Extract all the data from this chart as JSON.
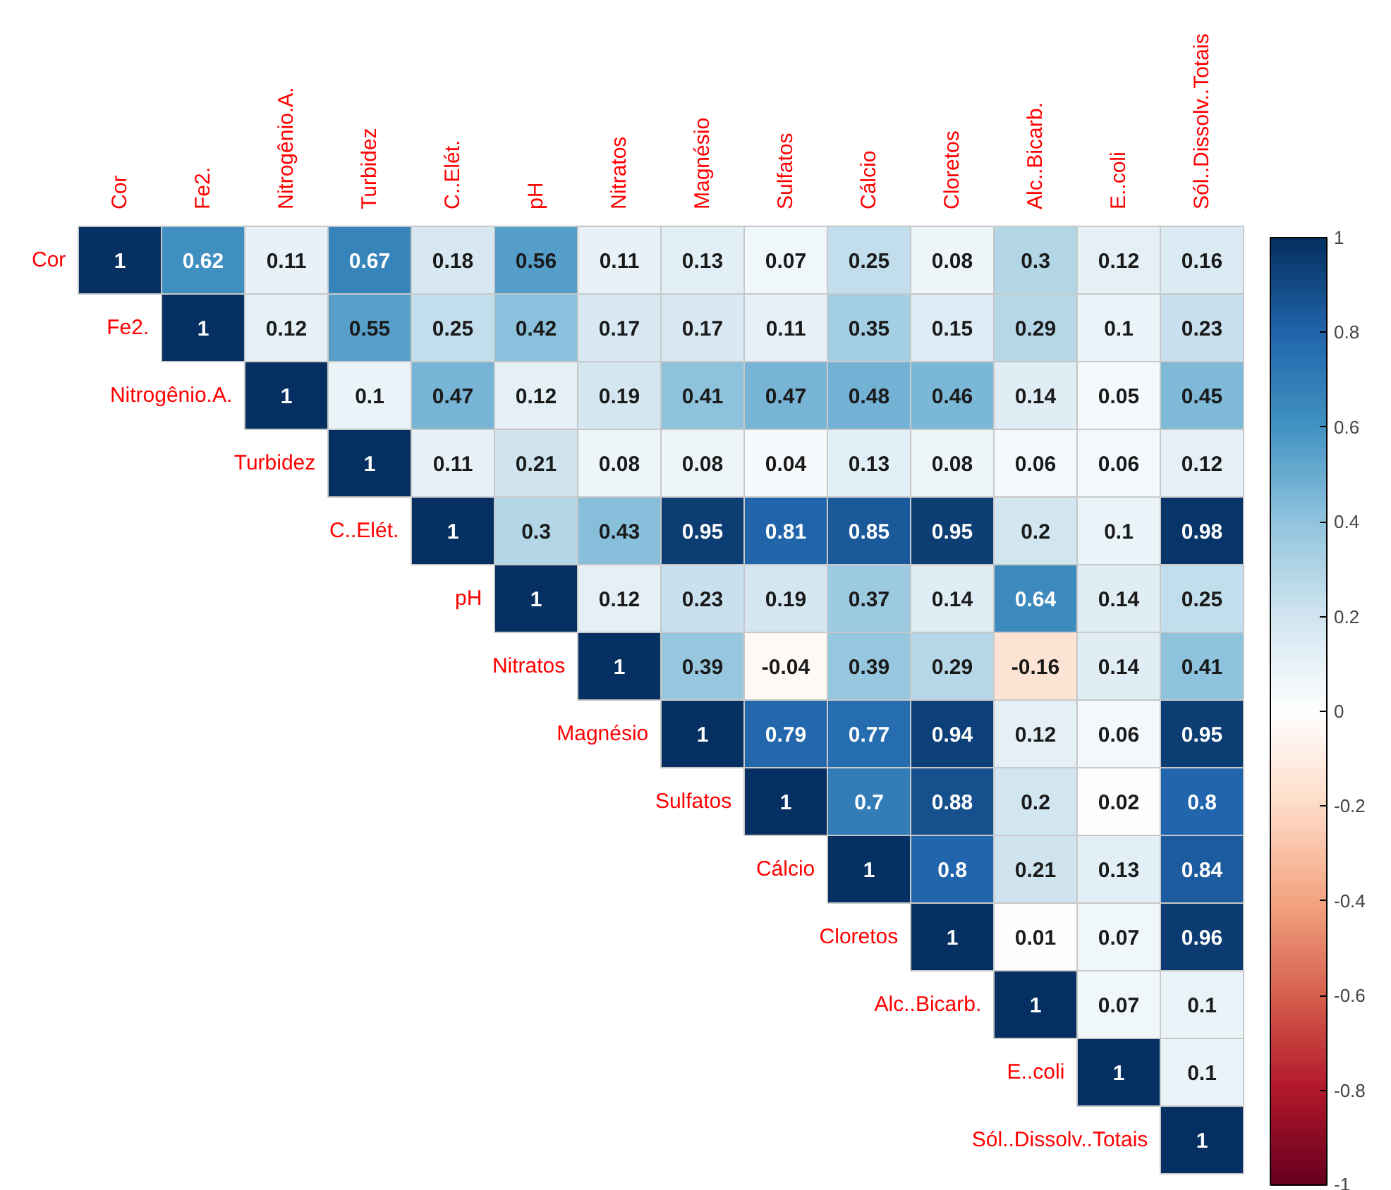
{
  "chart_data": {
    "type": "heatmap",
    "categories": [
      "Cor",
      "Fe2.",
      "Nitrogênio.A.",
      "Turbidez",
      "C..Elét.",
      "pH",
      "Nitratos",
      "Magnésio",
      "Sulfatos",
      "Cálcio",
      "Cloretos",
      "Alc..Bicarb.",
      "E..coli",
      "Sól..Dissolv..Totais"
    ],
    "y_categories": [
      "Cor",
      "Fe2.",
      "Nitrogênio.A.",
      "Turbidez",
      "C..Elét.",
      "pH",
      "Nitratos",
      "Magnésio",
      "Sulfatos",
      "Cálcio",
      "Cloretos",
      "Alc..Bicarb.",
      "E..coli",
      "Sól..Dissolv..Totais"
    ],
    "cells": [
      [
        1,
        0.62,
        0.11,
        0.67,
        0.18,
        0.56,
        0.11,
        0.13,
        0.07,
        0.25,
        0.08,
        0.3,
        0.12,
        0.16
      ],
      [
        null,
        1,
        0.12,
        0.55,
        0.25,
        0.42,
        0.17,
        0.17,
        0.11,
        0.35,
        0.15,
        0.29,
        0.1,
        0.23
      ],
      [
        null,
        null,
        1,
        0.1,
        0.47,
        0.12,
        0.19,
        0.41,
        0.47,
        0.48,
        0.46,
        0.14,
        0.05,
        0.45
      ],
      [
        null,
        null,
        null,
        1,
        0.11,
        0.21,
        0.08,
        0.08,
        0.04,
        0.13,
        0.08,
        0.06,
        0.06,
        0.12
      ],
      [
        null,
        null,
        null,
        null,
        1,
        0.3,
        0.43,
        0.95,
        0.81,
        0.85,
        0.95,
        0.2,
        0.1,
        0.98
      ],
      [
        null,
        null,
        null,
        null,
        null,
        1,
        0.12,
        0.23,
        0.19,
        0.37,
        0.14,
        0.64,
        0.14,
        0.25
      ],
      [
        null,
        null,
        null,
        null,
        null,
        null,
        1,
        0.39,
        -0.04,
        0.39,
        0.29,
        -0.16,
        0.14,
        0.41
      ],
      [
        null,
        null,
        null,
        null,
        null,
        null,
        null,
        1,
        0.79,
        0.77,
        0.94,
        0.12,
        0.06,
        0.95
      ],
      [
        null,
        null,
        null,
        null,
        null,
        null,
        null,
        null,
        1,
        0.7,
        0.88,
        0.2,
        0.02,
        0.8
      ],
      [
        null,
        null,
        null,
        null,
        null,
        null,
        null,
        null,
        null,
        1,
        0.8,
        0.21,
        0.13,
        0.84
      ],
      [
        null,
        null,
        null,
        null,
        null,
        null,
        null,
        null,
        null,
        null,
        1,
        0.01,
        0.07,
        0.96
      ],
      [
        null,
        null,
        null,
        null,
        null,
        null,
        null,
        null,
        null,
        null,
        null,
        1,
        0.07,
        0.1
      ],
      [
        null,
        null,
        null,
        null,
        null,
        null,
        null,
        null,
        null,
        null,
        null,
        null,
        1,
        0.1
      ],
      [
        null,
        null,
        null,
        null,
        null,
        null,
        null,
        null,
        null,
        null,
        null,
        null,
        null,
        1
      ]
    ],
    "clim": [
      -1,
      1
    ],
    "cticks": [
      -1,
      -0.8,
      -0.6,
      -0.4,
      -0.2,
      0,
      0.2,
      0.4,
      0.6,
      0.8,
      1
    ],
    "data_labels": true
  }
}
